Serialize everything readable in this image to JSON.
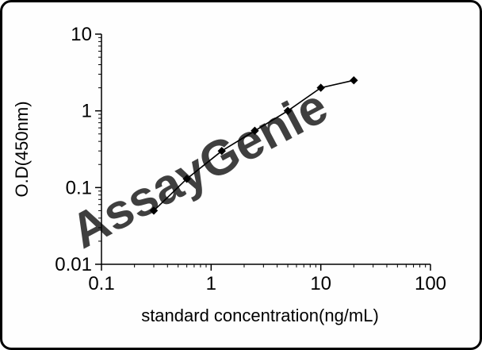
{
  "chart_data": {
    "type": "line",
    "title": "",
    "xlabel": "standard concentration(ng/mL)",
    "ylabel": "O.D(450nm)",
    "x_scale": "log",
    "y_scale": "log",
    "xlim": [
      0.1,
      100
    ],
    "ylim": [
      0.01,
      10
    ],
    "x_ticks": [
      0.1,
      1,
      10,
      100
    ],
    "x_tick_labels": [
      "0.1",
      "1",
      "10",
      "100"
    ],
    "y_ticks": [
      0.01,
      0.1,
      1,
      10
    ],
    "y_tick_labels": [
      "0.01",
      "0.1",
      "1",
      "10"
    ],
    "grid": false,
    "legend": "none",
    "marker": "diamond",
    "line_color": "#000000",
    "marker_color": "#000000",
    "points": [
      {
        "x": 0.3,
        "y": 0.05
      },
      {
        "x": 0.6,
        "y": 0.13
      },
      {
        "x": 1.25,
        "y": 0.3
      },
      {
        "x": 2.5,
        "y": 0.55
      },
      {
        "x": 5,
        "y": 1.0
      },
      {
        "x": 10,
        "y": 2.0
      },
      {
        "x": 20,
        "y": 2.5
      }
    ]
  },
  "watermark": {
    "text": "AssayGenie",
    "color": "#a9c4e2"
  }
}
